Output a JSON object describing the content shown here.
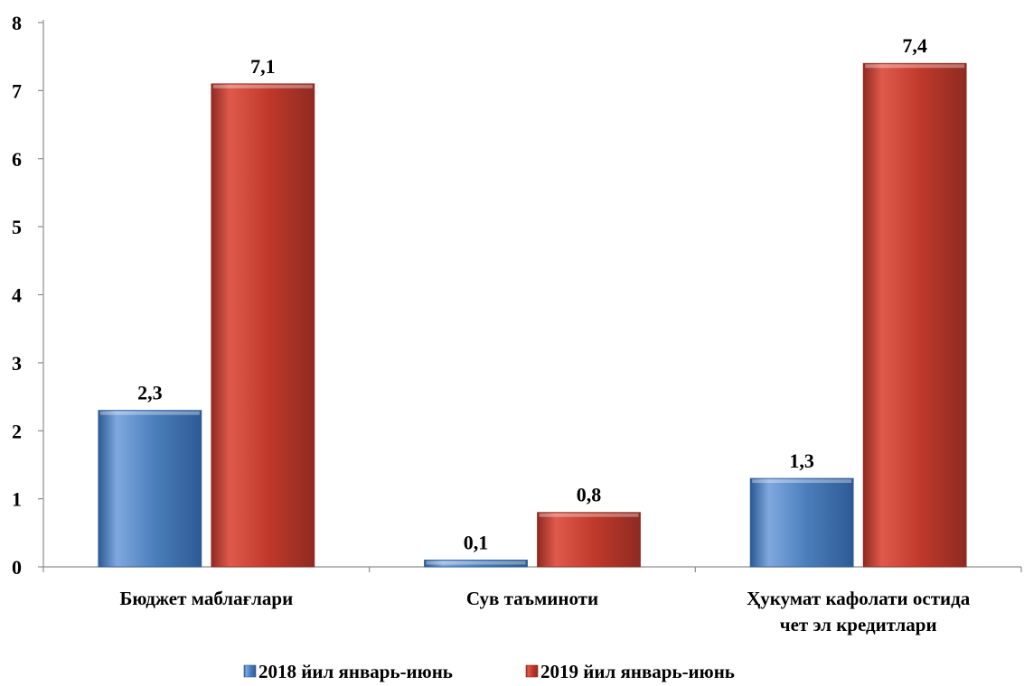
{
  "chart_data": {
    "type": "bar",
    "categories": [
      [
        "Бюджет маблағлари"
      ],
      [
        "Сув таъминоти"
      ],
      [
        "Ҳукумат кафолати остида",
        "чет эл кредитлари"
      ]
    ],
    "series": [
      {
        "name": "2018 йил январь-июнь",
        "values": [
          2.3,
          0.1,
          1.3
        ],
        "labels": [
          "2,3",
          "0,1",
          "1,3"
        ],
        "color": "#4a7ebb",
        "color_light": "#7fa8de",
        "color_dark": "#2d5a94"
      },
      {
        "name": "2019 йил январь-июнь",
        "values": [
          7.1,
          0.8,
          7.4
        ],
        "labels": [
          "7,1",
          "0,8",
          "7,4"
        ],
        "color": "#c0392b",
        "color_light": "#e05a4c",
        "color_dark": "#8f2a22"
      }
    ],
    "yticks": [
      "0",
      "1",
      "2",
      "3",
      "4",
      "5",
      "6",
      "7",
      "8"
    ],
    "ylim": [
      0,
      8
    ],
    "grid": false,
    "legend_position": "bottom"
  }
}
